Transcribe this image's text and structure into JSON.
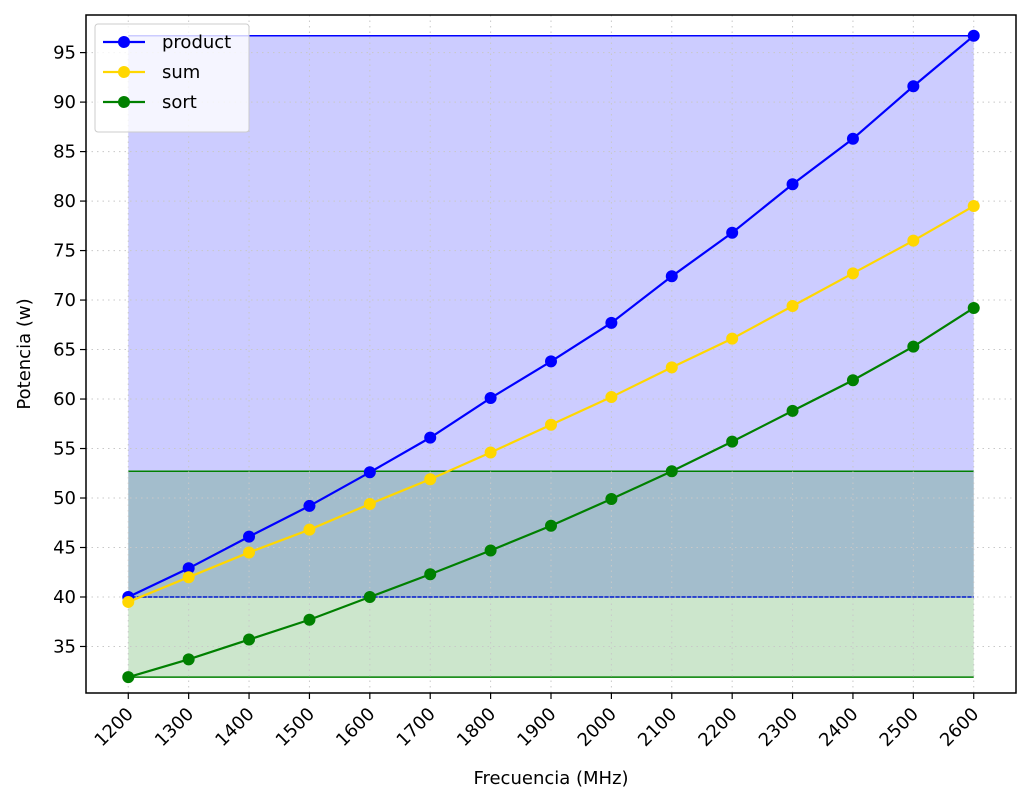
{
  "chart_data": {
    "type": "line",
    "xlabel": "Frecuencia (MHz)",
    "ylabel": "Potencia (w)",
    "x": [
      1200,
      1300,
      1400,
      1500,
      1600,
      1700,
      1800,
      1900,
      2000,
      2100,
      2200,
      2300,
      2400,
      2500,
      2600
    ],
    "xlim": [
      1130,
      2670
    ],
    "ylim": [
      30.3,
      98.8
    ],
    "yticks": [
      35,
      40,
      45,
      50,
      55,
      60,
      65,
      70,
      75,
      80,
      85,
      90,
      95
    ],
    "grid": true,
    "legend_position": "upper-left",
    "series": [
      {
        "name": "product",
        "color": "#0000ff",
        "values": [
          40.0,
          42.9,
          46.1,
          49.2,
          52.6,
          56.1,
          60.1,
          63.8,
          67.7,
          72.4,
          76.8,
          81.7,
          86.3,
          91.6,
          96.7
        ],
        "band": [
          40.0,
          96.7
        ],
        "band_fill": "rgba(0,0,255,0.2)"
      },
      {
        "name": "sum",
        "color": "#ffd700",
        "values": [
          39.5,
          42.0,
          44.5,
          46.8,
          49.4,
          51.9,
          54.6,
          57.4,
          60.2,
          63.2,
          66.1,
          69.4,
          72.7,
          76.0,
          79.5
        ]
      },
      {
        "name": "sort",
        "color": "#008000",
        "values": [
          31.9,
          33.7,
          35.7,
          37.7,
          40.0,
          42.3,
          44.7,
          47.2,
          49.9,
          52.7,
          55.7,
          58.8,
          61.9,
          65.3,
          69.2
        ],
        "band": [
          31.9,
          52.7
        ],
        "band_fill": "rgba(0,128,0,0.2)"
      }
    ]
  }
}
